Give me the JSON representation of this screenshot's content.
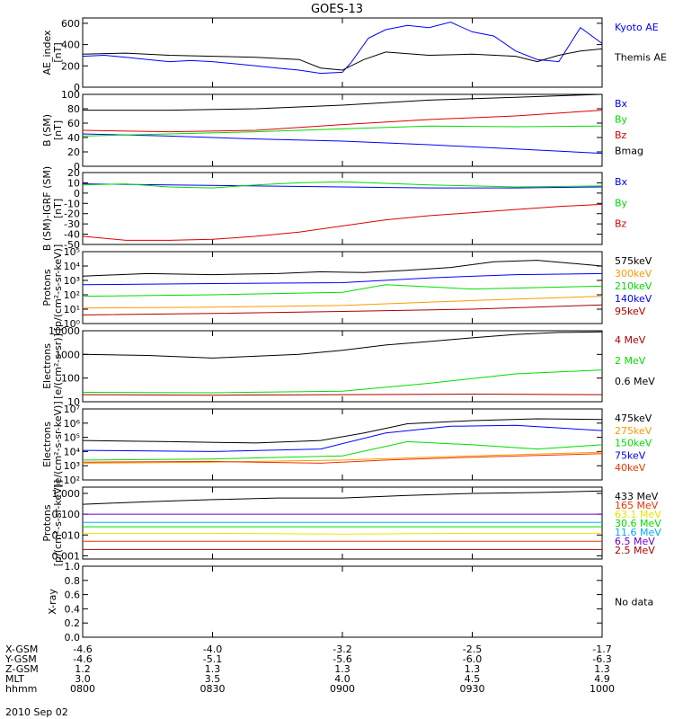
{
  "title": "GOES-13",
  "date_label": "2010 Sep 02",
  "colors": {
    "black": "#000000",
    "blue": "#0000ff",
    "green": "#00dd00",
    "red": "#dd0000",
    "darkred": "#aa0000",
    "orange": "#ff9900",
    "yellow": "#e6e600",
    "cyan": "#00aaff",
    "purple": "#6600cc",
    "coral": "#ff5533",
    "redorange": "#ee3300"
  },
  "chart_data": [
    {
      "type": "line",
      "ylabel": "AE_index\n[nT]",
      "ylim": [
        0,
        650
      ],
      "log": false,
      "yticks": [
        0,
        200,
        400,
        600
      ],
      "ytick_labels": [
        "0",
        "200",
        "400",
        "600"
      ],
      "series": [
        {
          "name": "Kyoto AE",
          "color": "blue",
          "x": [
            0,
            5,
            10,
            15,
            20,
            25,
            30,
            35,
            40,
            45,
            50,
            55,
            60,
            62,
            66,
            70,
            75,
            80,
            85,
            90,
            95,
            100,
            105,
            110,
            115,
            120
          ],
          "y": [
            290,
            300,
            280,
            260,
            240,
            250,
            240,
            220,
            200,
            180,
            160,
            130,
            140,
            230,
            460,
            540,
            580,
            560,
            610,
            520,
            480,
            340,
            260,
            240,
            560,
            410
          ]
        },
        {
          "name": "Themis AE",
          "color": "black",
          "x": [
            0,
            10,
            20,
            30,
            40,
            50,
            55,
            60,
            65,
            70,
            80,
            90,
            100,
            105,
            110,
            115,
            120
          ],
          "y": [
            310,
            320,
            300,
            290,
            280,
            260,
            180,
            160,
            260,
            330,
            300,
            310,
            290,
            240,
            300,
            340,
            360
          ]
        }
      ]
    },
    {
      "type": "line",
      "ylabel": "B (SM)\n[nT]",
      "ylim": [
        0,
        100
      ],
      "log": false,
      "yticks": [
        0,
        20,
        40,
        60,
        80,
        100
      ],
      "ytick_labels": [
        "0",
        "20",
        "40",
        "60",
        "80",
        "100"
      ],
      "series": [
        {
          "name": "Bx",
          "color": "blue",
          "x": [
            0,
            20,
            40,
            60,
            80,
            100,
            120
          ],
          "y": [
            45,
            42,
            38,
            35,
            30,
            24,
            18
          ]
        },
        {
          "name": "By",
          "color": "green",
          "x": [
            0,
            20,
            40,
            60,
            80,
            100,
            120
          ],
          "y": [
            42,
            45,
            48,
            52,
            56,
            55,
            56
          ]
        },
        {
          "name": "Bz",
          "color": "red",
          "x": [
            0,
            20,
            40,
            60,
            80,
            100,
            120
          ],
          "y": [
            50,
            48,
            50,
            58,
            65,
            70,
            78
          ]
        },
        {
          "name": "Bmag",
          "color": "black",
          "x": [
            0,
            20,
            40,
            60,
            80,
            100,
            120
          ],
          "y": [
            78,
            78,
            80,
            85,
            92,
            96,
            100
          ]
        }
      ]
    },
    {
      "type": "line",
      "ylabel": "B (SM)-IGRF (SM)\n[nT]",
      "ylim": [
        -50,
        20
      ],
      "log": false,
      "yticks": [
        -50,
        -40,
        -30,
        -20,
        -10,
        0,
        10,
        20
      ],
      "ytick_labels": [
        "-50",
        "-40",
        "-30",
        "-20",
        "-10",
        "0",
        "10",
        "20"
      ],
      "series": [
        {
          "name": "Bx",
          "color": "blue",
          "x": [
            0,
            20,
            40,
            60,
            80,
            100,
            120
          ],
          "y": [
            9,
            8,
            7,
            6,
            5,
            5,
            6
          ]
        },
        {
          "name": "By",
          "color": "green",
          "x": [
            0,
            10,
            20,
            30,
            40,
            50,
            60,
            80,
            100,
            120
          ],
          "y": [
            8,
            9,
            6,
            5,
            8,
            10,
            11,
            8,
            6,
            7
          ]
        },
        {
          "name": "Bz",
          "color": "red",
          "x": [
            0,
            10,
            20,
            30,
            40,
            50,
            60,
            70,
            80,
            90,
            100,
            110,
            120
          ],
          "y": [
            -42,
            -46,
            -46,
            -45,
            -42,
            -38,
            -32,
            -26,
            -22,
            -19,
            -16,
            -13,
            -11
          ]
        }
      ]
    },
    {
      "type": "line",
      "ylabel": "Protons\n[p/(cm²-s-sr-keV)]",
      "ylim": [
        1,
        100000
      ],
      "log": true,
      "yticks": [
        1,
        10,
        100,
        1000,
        10000,
        100000
      ],
      "ytick_labels": [
        "10⁰",
        "10¹",
        "10²",
        "10³",
        "10⁴",
        "10⁵"
      ],
      "series": [
        {
          "name": "575keV",
          "color": "black",
          "x": [
            0,
            15,
            30,
            45,
            55,
            65,
            75,
            85,
            95,
            105,
            120
          ],
          "y": [
            2000,
            3000,
            2500,
            3000,
            4000,
            3500,
            5000,
            8000,
            20000,
            25000,
            10000
          ]
        },
        {
          "name": "300keV",
          "color": "orange",
          "x": [
            0,
            30,
            60,
            90,
            120
          ],
          "y": [
            12,
            14,
            18,
            40,
            80
          ]
        },
        {
          "name": "210keV",
          "color": "green",
          "x": [
            0,
            30,
            60,
            70,
            90,
            120
          ],
          "y": [
            80,
            100,
            150,
            500,
            250,
            400
          ]
        },
        {
          "name": "140keV",
          "color": "blue",
          "x": [
            0,
            30,
            60,
            80,
            100,
            120
          ],
          "y": [
            500,
            600,
            700,
            1500,
            2500,
            3000
          ]
        },
        {
          "name": "95keV",
          "color": "darkred",
          "x": [
            0,
            30,
            60,
            90,
            120
          ],
          "y": [
            4,
            5,
            7,
            10,
            20
          ]
        }
      ]
    },
    {
      "type": "line",
      "ylabel": "Electrons\n[e/(cm²-s-sr)]",
      "ylim": [
        10,
        10000
      ],
      "log": true,
      "yticks": [
        10,
        100,
        1000,
        10000
      ],
      "ytick_labels": [
        "10",
        "100",
        "1000",
        "10000"
      ],
      "series": [
        {
          "name": "4 MeV",
          "color": "darkred",
          "x": [
            0,
            30,
            60,
            90,
            120
          ],
          "y": [
            20,
            19,
            20,
            21,
            20
          ]
        },
        {
          "name": "2 MeV",
          "color": "green",
          "x": [
            0,
            30,
            60,
            80,
            100,
            120
          ],
          "y": [
            25,
            24,
            28,
            60,
            150,
            220
          ]
        },
        {
          "name": "0.6 MeV",
          "color": "black",
          "x": [
            0,
            15,
            30,
            50,
            60,
            70,
            80,
            90,
            100,
            110,
            120
          ],
          "y": [
            1000,
            900,
            700,
            1000,
            1500,
            2500,
            3500,
            5000,
            7000,
            8500,
            9000
          ]
        }
      ]
    },
    {
      "type": "line",
      "ylabel": "Electrons\n[e/(cm²-s-sr-keV)]",
      "ylim": [
        100,
        10000000
      ],
      "log": true,
      "yticks": [
        100,
        1000,
        10000,
        100000,
        1000000,
        10000000
      ],
      "ytick_labels": [
        "10²",
        "10³",
        "10⁴",
        "10⁵",
        "10⁶",
        "10⁷"
      ],
      "series": [
        {
          "name": "475keV",
          "color": "black",
          "x": [
            0,
            20,
            40,
            55,
            65,
            75,
            90,
            105,
            120
          ],
          "y": [
            60000,
            50000,
            40000,
            60000,
            200000,
            900000,
            1500000,
            2000000,
            1800000
          ]
        },
        {
          "name": "275keV",
          "color": "orange",
          "x": [
            0,
            30,
            60,
            90,
            120
          ],
          "y": [
            1500,
            1800,
            2500,
            5000,
            9000
          ]
        },
        {
          "name": "150keV",
          "color": "green",
          "x": [
            0,
            30,
            60,
            75,
            90,
            105,
            120
          ],
          "y": [
            2500,
            3000,
            5000,
            50000,
            30000,
            15000,
            30000
          ]
        },
        {
          "name": "75keV",
          "color": "blue",
          "x": [
            0,
            30,
            55,
            70,
            85,
            100,
            120
          ],
          "y": [
            12000,
            10000,
            15000,
            200000,
            600000,
            700000,
            300000
          ]
        },
        {
          "name": "40keV",
          "color": "redorange",
          "x": [
            0,
            30,
            55,
            70,
            90,
            120
          ],
          "y": [
            1800,
            2000,
            1500,
            2500,
            4000,
            7000
          ]
        }
      ]
    },
    {
      "type": "line",
      "ylabel": "Protons\n[p/(cm²-s-sr-keV)]",
      "ylim": [
        0.0007,
        2
      ],
      "log": true,
      "yticks": [
        0.001,
        0.01,
        0.1,
        1
      ],
      "ytick_labels": [
        "0.001",
        "0.010",
        "0.100",
        "1.000"
      ],
      "series": [
        {
          "name": "433 MeV",
          "color": "black",
          "x": [
            0,
            15,
            30,
            45,
            60,
            75,
            90,
            105,
            120
          ],
          "y": [
            0.3,
            0.4,
            0.5,
            0.6,
            0.6,
            0.8,
            1.0,
            1.1,
            1.3
          ]
        },
        {
          "name": "165 MeV",
          "color": "redorange",
          "x": [
            0,
            30,
            60,
            90,
            120
          ],
          "y": [
            0.005,
            0.005,
            0.005,
            0.005,
            0.005
          ]
        },
        {
          "name": "63.1 MeV",
          "color": "yellow",
          "x": [
            0,
            30,
            60,
            90,
            120
          ],
          "y": [
            0.012,
            0.012,
            0.011,
            0.012,
            0.012
          ]
        },
        {
          "name": "30.6 MeV",
          "color": "green",
          "x": [
            0,
            30,
            60,
            90,
            120
          ],
          "y": [
            0.025,
            0.025,
            0.025,
            0.025,
            0.025
          ]
        },
        {
          "name": "11.6 MeV",
          "color": "cyan",
          "x": [
            0,
            30,
            60,
            90,
            120
          ],
          "y": [
            0.04,
            0.04,
            0.04,
            0.04,
            0.04
          ]
        },
        {
          "name": "6.5 MeV",
          "color": "purple",
          "x": [
            0,
            30,
            60,
            90,
            120
          ],
          "y": [
            0.1,
            0.1,
            0.1,
            0.1,
            0.1
          ]
        },
        {
          "name": "2.5 MeV",
          "color": "darkred",
          "x": [
            0,
            30,
            60,
            90,
            120
          ],
          "y": [
            0.002,
            0.002,
            0.002,
            0.002,
            0.002
          ]
        }
      ]
    },
    {
      "type": "line",
      "ylabel": "X-ray",
      "ylim": [
        0,
        1
      ],
      "log": false,
      "yticks": [
        0,
        0.2,
        0.4,
        0.6,
        0.8,
        1.0
      ],
      "ytick_labels": [
        "0.0",
        "0.2",
        "0.4",
        "0.6",
        "0.8",
        "1.0"
      ],
      "series": [],
      "legend": "No data"
    }
  ],
  "xaxis": {
    "xlim": [
      0,
      120
    ],
    "tick_x": [
      0,
      30,
      60,
      90,
      120
    ],
    "rows": [
      {
        "label": "X-GSM",
        "values": [
          "-4.6",
          "-4.0",
          "-3.2",
          "-2.5",
          "-1.7"
        ]
      },
      {
        "label": "Y-GSM",
        "values": [
          "-4.6",
          "-5.1",
          "-5.6",
          "-6.0",
          "-6.3"
        ]
      },
      {
        "label": "Z-GSM",
        "values": [
          "1.2",
          "1.3",
          "1.3",
          "1.3",
          "1.3"
        ]
      },
      {
        "label": "MLT",
        "values": [
          "3.0",
          "3.5",
          "4.0",
          "4.5",
          "4.9"
        ]
      },
      {
        "label": "hhmm",
        "values": [
          "0800",
          "0830",
          "0900",
          "0930",
          "1000"
        ]
      }
    ]
  }
}
